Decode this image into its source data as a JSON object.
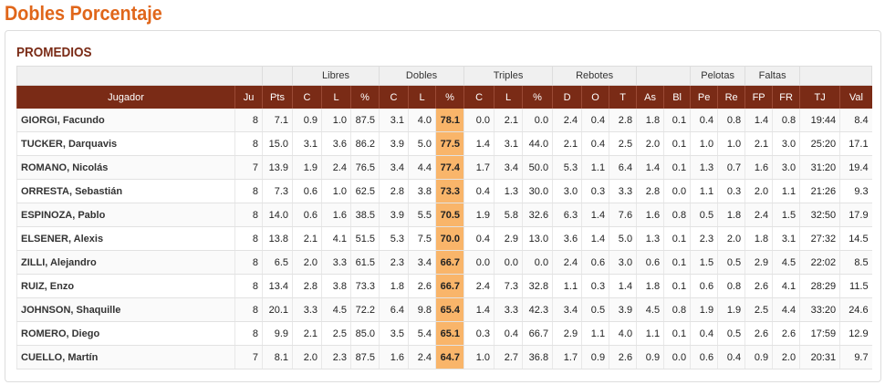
{
  "header": {
    "title": "Dobles Porcentaje"
  },
  "section": {
    "title": "PROMEDIOS"
  },
  "table": {
    "groups": [
      "Libres",
      "Dobles",
      "Triples",
      "Rebotes",
      "Pelotas",
      "Faltas"
    ],
    "columns": [
      "Jugador",
      "Ju",
      "Pts",
      "C",
      "L",
      "%",
      "C",
      "L",
      "%",
      "C",
      "L",
      "%",
      "D",
      "O",
      "T",
      "As",
      "Bl",
      "Pe",
      "Re",
      "FP",
      "FR",
      "TJ",
      "Val"
    ],
    "rows": [
      [
        "GIORGI, Facundo",
        "8",
        "7.1",
        "0.9",
        "1.0",
        "87.5",
        "3.1",
        "4.0",
        "78.1",
        "0.0",
        "2.1",
        "0.0",
        "2.4",
        "0.4",
        "2.8",
        "1.8",
        "0.1",
        "0.4",
        "0.8",
        "1.4",
        "0.8",
        "19:44",
        "8.4"
      ],
      [
        "TUCKER, Darquavis",
        "8",
        "15.0",
        "3.1",
        "3.6",
        "86.2",
        "3.9",
        "5.0",
        "77.5",
        "1.4",
        "3.1",
        "44.0",
        "2.1",
        "0.4",
        "2.5",
        "2.0",
        "0.1",
        "1.0",
        "1.0",
        "2.1",
        "3.0",
        "25:20",
        "17.1"
      ],
      [
        "ROMANO, Nicolás",
        "7",
        "13.9",
        "1.9",
        "2.4",
        "76.5",
        "3.4",
        "4.4",
        "77.4",
        "1.7",
        "3.4",
        "50.0",
        "5.3",
        "1.1",
        "6.4",
        "1.4",
        "0.1",
        "1.3",
        "0.7",
        "1.6",
        "3.0",
        "31:20",
        "19.4"
      ],
      [
        "ORRESTA, Sebastián",
        "8",
        "7.3",
        "0.6",
        "1.0",
        "62.5",
        "2.8",
        "3.8",
        "73.3",
        "0.4",
        "1.3",
        "30.0",
        "3.0",
        "0.3",
        "3.3",
        "2.8",
        "0.0",
        "1.1",
        "0.3",
        "2.0",
        "1.1",
        "21:26",
        "9.3"
      ],
      [
        "ESPINOZA, Pablo",
        "8",
        "14.0",
        "0.6",
        "1.6",
        "38.5",
        "3.9",
        "5.5",
        "70.5",
        "1.9",
        "5.8",
        "32.6",
        "6.3",
        "1.4",
        "7.6",
        "1.6",
        "0.8",
        "0.5",
        "1.8",
        "2.4",
        "1.5",
        "32:50",
        "17.9"
      ],
      [
        "ELSENER, Alexis",
        "8",
        "13.8",
        "2.1",
        "4.1",
        "51.5",
        "5.3",
        "7.5",
        "70.0",
        "0.4",
        "2.9",
        "13.0",
        "3.6",
        "1.4",
        "5.0",
        "1.3",
        "0.1",
        "2.3",
        "2.0",
        "1.8",
        "3.1",
        "27:32",
        "14.5"
      ],
      [
        "ZILLI, Alejandro",
        "8",
        "6.5",
        "2.0",
        "3.3",
        "61.5",
        "2.3",
        "3.4",
        "66.7",
        "0.0",
        "0.0",
        "0.0",
        "2.4",
        "0.6",
        "3.0",
        "0.6",
        "0.1",
        "1.5",
        "0.5",
        "2.9",
        "4.5",
        "22:02",
        "8.5"
      ],
      [
        "RUIZ, Enzo",
        "8",
        "13.4",
        "2.8",
        "3.8",
        "73.3",
        "1.8",
        "2.6",
        "66.7",
        "2.4",
        "7.3",
        "32.8",
        "1.1",
        "0.3",
        "1.4",
        "1.8",
        "0.1",
        "0.6",
        "0.8",
        "2.6",
        "4.1",
        "28:29",
        "11.5"
      ],
      [
        "JOHNSON, Shaquille",
        "8",
        "20.1",
        "3.3",
        "4.5",
        "72.2",
        "6.4",
        "9.8",
        "65.4",
        "1.4",
        "3.3",
        "42.3",
        "3.4",
        "0.5",
        "3.9",
        "4.5",
        "0.8",
        "1.9",
        "1.9",
        "2.5",
        "4.4",
        "33:20",
        "24.6"
      ],
      [
        "ROMERO, Diego",
        "8",
        "9.9",
        "2.1",
        "2.5",
        "85.0",
        "3.5",
        "5.4",
        "65.1",
        "0.3",
        "0.4",
        "66.7",
        "2.9",
        "1.1",
        "4.0",
        "1.1",
        "0.1",
        "0.4",
        "0.5",
        "2.6",
        "2.6",
        "17:59",
        "12.9"
      ],
      [
        "CUELLO, Martín",
        "7",
        "8.1",
        "2.0",
        "2.3",
        "87.5",
        "1.6",
        "2.4",
        "64.7",
        "1.0",
        "2.7",
        "36.8",
        "1.7",
        "0.9",
        "2.6",
        "0.9",
        "0.0",
        "0.6",
        "0.4",
        "0.9",
        "2.0",
        "20:31",
        "9.7"
      ]
    ]
  }
}
